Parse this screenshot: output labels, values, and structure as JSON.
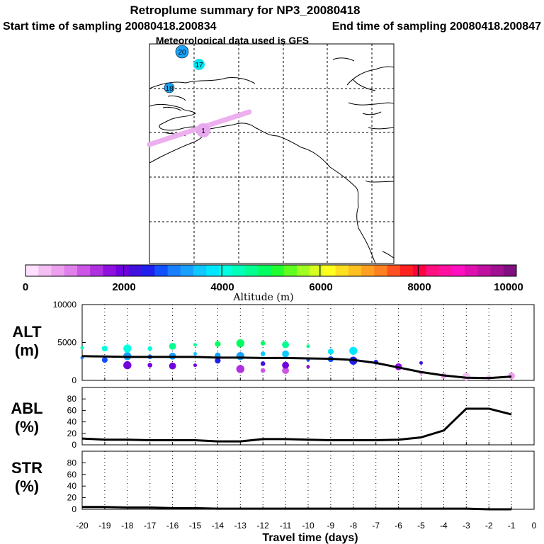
{
  "header": {
    "title": "Retroplume summary for NP3_20080418",
    "start_time": "Start time of sampling 20080418.200834",
    "end_time": "End time of sampling 20080418.200847",
    "met_data": "Meteorological data used is GFS"
  },
  "map": {
    "markers": [
      {
        "label": "20",
        "color": "#1aa6ff"
      },
      {
        "label": "17",
        "color": "#00e6f0"
      },
      {
        "label": "18",
        "color": "#1aa6ff"
      },
      {
        "label": "1",
        "color": "#e8a8ee"
      }
    ]
  },
  "colorbar": {
    "title": "Altitude (m)",
    "tick_labels": [
      "0",
      "2000",
      "4000",
      "6000",
      "8000",
      "10000"
    ],
    "colors": [
      "#ffe0ff",
      "#f4c0f4",
      "#eca0ee",
      "#e080ea",
      "#cc55e6",
      "#b030e0",
      "#9010e0",
      "#7000dd",
      "#4010dd",
      "#2020ee",
      "#1050ff",
      "#1880ff",
      "#18a0ff",
      "#10c8ff",
      "#00e8ff",
      "#00ffe0",
      "#00ffb8",
      "#00ff90",
      "#00ff60",
      "#20ff30",
      "#60ff20",
      "#a0ff20",
      "#d8ff20",
      "#ffff20",
      "#ffe020",
      "#ffc020",
      "#ffa020",
      "#ff8020",
      "#ff5020",
      "#ff2020",
      "#ff0040",
      "#ff1080",
      "#ff10a0",
      "#ff10c0",
      "#e010b0",
      "#c010a0",
      "#a01090",
      "#801080"
    ]
  },
  "panels": {
    "alt": {
      "label_line1": "ALT",
      "label_line2": "(m)"
    },
    "abl": {
      "label_line1": "ABL",
      "label_line2": "(%)"
    },
    "str": {
      "label_line1": "STR",
      "label_line2": "(%)"
    },
    "xaxis_title": "Travel time (days)"
  },
  "chart_data": [
    {
      "type": "line",
      "name": "ALT",
      "ylabel": "ALT (m)",
      "ylim": [
        0,
        10000
      ],
      "yticks": [
        0,
        5000,
        10000
      ],
      "xlim": [
        -20,
        0
      ],
      "x": [
        -20,
        -19,
        -18,
        -17,
        -16,
        -15,
        -14,
        -13,
        -12,
        -11,
        -10,
        -9,
        -8,
        -7,
        -6,
        -5,
        -4,
        -3,
        -2,
        -1
      ],
      "values": [
        3200,
        3150,
        3100,
        3100,
        3100,
        3100,
        3000,
        3000,
        2950,
        2950,
        2900,
        2850,
        2700,
        2300,
        1700,
        1100,
        650,
        350,
        300,
        500
      ],
      "scatter": [
        {
          "x": -20,
          "y": 3000
        },
        {
          "x": -20,
          "y": 4300
        },
        {
          "x": -19,
          "y": 2700
        },
        {
          "x": -19,
          "y": 4200
        },
        {
          "x": -18,
          "y": 2000
        },
        {
          "x": -18,
          "y": 3200
        },
        {
          "x": -18,
          "y": 4200
        },
        {
          "x": -17,
          "y": 2000
        },
        {
          "x": -17,
          "y": 3100
        },
        {
          "x": -17,
          "y": 4200
        },
        {
          "x": -16,
          "y": 1900
        },
        {
          "x": -16,
          "y": 3200
        },
        {
          "x": -16,
          "y": 4500
        },
        {
          "x": -15,
          "y": 2000
        },
        {
          "x": -15,
          "y": 3500
        },
        {
          "x": -15,
          "y": 4700
        },
        {
          "x": -14,
          "y": 2600
        },
        {
          "x": -14,
          "y": 3300
        },
        {
          "x": -14,
          "y": 4800
        },
        {
          "x": -13,
          "y": 1500
        },
        {
          "x": -13,
          "y": 3200
        },
        {
          "x": -13,
          "y": 4900
        },
        {
          "x": -12,
          "y": 1300
        },
        {
          "x": -12,
          "y": 2200
        },
        {
          "x": -12,
          "y": 3500
        },
        {
          "x": -12,
          "y": 4900
        },
        {
          "x": -11,
          "y": 1300
        },
        {
          "x": -11,
          "y": 2000
        },
        {
          "x": -11,
          "y": 3500
        },
        {
          "x": -11,
          "y": 4700
        },
        {
          "x": -10,
          "y": 1800
        },
        {
          "x": -10,
          "y": 2700
        },
        {
          "x": -10,
          "y": 4500
        },
        {
          "x": -9,
          "y": 2800
        },
        {
          "x": -9,
          "y": 3800
        },
        {
          "x": -8,
          "y": 2600
        },
        {
          "x": -8,
          "y": 3900
        },
        {
          "x": -7,
          "y": 2400
        },
        {
          "x": -6,
          "y": 1800
        },
        {
          "x": -5,
          "y": 1000
        },
        {
          "x": -5,
          "y": 2300
        },
        {
          "x": -4,
          "y": 600
        },
        {
          "x": -3,
          "y": 500
        },
        {
          "x": -2,
          "y": 400
        },
        {
          "x": -1,
          "y": 600
        }
      ]
    },
    {
      "type": "line",
      "name": "ABL",
      "ylabel": "ABL (%)",
      "ylim": [
        0,
        100
      ],
      "yticks": [
        0,
        20,
        40,
        60,
        80
      ],
      "xlim": [
        -20,
        0
      ],
      "x": [
        -20,
        -19,
        -18,
        -17,
        -16,
        -15,
        -14,
        -13,
        -12,
        -11,
        -10,
        -9,
        -8,
        -7,
        -6,
        -5,
        -4,
        -3,
        -2,
        -1
      ],
      "values": [
        11,
        9,
        9,
        8,
        8,
        8,
        6,
        6,
        10,
        10,
        9,
        8,
        8,
        8,
        9,
        13,
        25,
        63,
        63,
        53
      ]
    },
    {
      "type": "line",
      "name": "STR",
      "ylabel": "STR (%)",
      "ylim": [
        0,
        100
      ],
      "yticks": [
        0,
        20,
        40,
        60,
        80
      ],
      "xlim": [
        -20,
        0
      ],
      "xlabel": "Travel time (days)",
      "xtick_labels": [
        "-20",
        "-19",
        "-18",
        "-17",
        "-16",
        "-15",
        "-14",
        "-13",
        "-12",
        "-11",
        "-10",
        "-9",
        "-8",
        "-7",
        "-6",
        "-5",
        "-4",
        "-3",
        "-2",
        "-1",
        "0"
      ],
      "x": [
        -20,
        -19,
        -18,
        -17,
        -16,
        -15,
        -14,
        -13,
        -12,
        -11,
        -10,
        -9,
        -8,
        -7,
        -6,
        -5,
        -4,
        -3,
        -2,
        -1
      ],
      "values": [
        4,
        4,
        3,
        3,
        2,
        2,
        1,
        1,
        1,
        1,
        1,
        1,
        1,
        1,
        1,
        1,
        1,
        1,
        0,
        0
      ]
    }
  ]
}
